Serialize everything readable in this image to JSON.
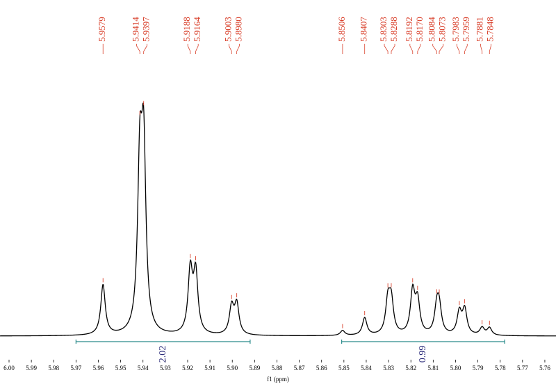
{
  "chart_data": {
    "type": "nmr",
    "xlabel": "f1 (ppm)",
    "x": [
      5.9579,
      5.9414,
      5.9397,
      5.9188,
      5.9164,
      5.9003,
      5.898,
      5.8506,
      5.8407,
      5.8303,
      5.8288,
      5.8192,
      5.817,
      5.8084,
      5.8073,
      5.7983,
      5.7959,
      5.7881,
      5.7848
    ],
    "x_labels": [
      "5.9579",
      "5.9414",
      "5.9397",
      "5.9188",
      "5.9164",
      "5.9003",
      "5.8980",
      "5.8506",
      "5.8407",
      "5.8303",
      "5.8288",
      "5.8192",
      "5.8170",
      "5.8084",
      "5.8073",
      "5.7983",
      "5.7959",
      "5.7881",
      "5.7848"
    ],
    "values": [
      20,
      64,
      70,
      25,
      24,
      11,
      12,
      2,
      7,
      13,
      13,
      17,
      13,
      10,
      10,
      9,
      10,
      3,
      3
    ],
    "color": "#000000",
    "peak_label_color": "#d9402b",
    "xlim": [
      6.0,
      5.755
    ],
    "xticks": [
      {
        "value": 6.0,
        "label": "6.00"
      },
      5.99,
      5.98,
      5.97,
      5.96,
      5.95,
      5.94,
      5.93,
      5.92,
      5.91,
      {
        "value": 5.9,
        "label": "5.90"
      },
      5.89,
      5.88,
      5.87,
      5.86,
      5.85,
      5.84,
      5.83,
      5.82,
      5.81,
      {
        "value": 5.8,
        "label": "5.80"
      },
      5.79,
      5.78,
      5.77,
      5.76
    ],
    "integrals": [
      {
        "range": [
          5.97,
          5.892
        ],
        "value": 2.02
      },
      {
        "range": [
          5.851,
          5.778
        ],
        "value": 0.99
      }
    ],
    "integral_color": "#2a8c8c",
    "integral_label_color": "#2b2b7a"
  }
}
